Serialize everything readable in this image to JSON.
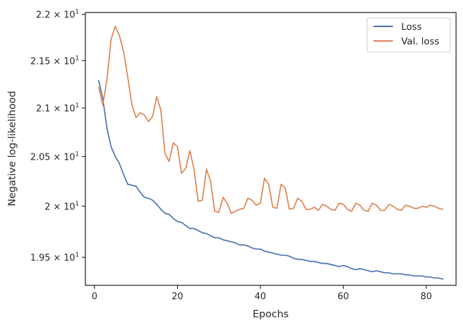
{
  "chart_data": {
    "type": "line",
    "xlabel": "Epochs",
    "ylabel": "Negative log-likelihood",
    "xlim": [
      -2.2,
      87.2
    ],
    "ylim": [
      19.23,
      22.02
    ],
    "yscale": "log",
    "grid": false,
    "legend_placement": "top-right",
    "x_ticks": [
      0,
      20,
      40,
      60,
      80
    ],
    "x_tick_labels": [
      "0",
      "20",
      "40",
      "60",
      "80"
    ],
    "y_ticks": [
      19.5,
      20.0,
      20.5,
      21.0,
      21.5,
      22.0
    ],
    "y_tick_labels": [
      {
        "mantissa": "1.95",
        "times": "×",
        "base": "10",
        "exp": "1"
      },
      {
        "mantissa": "2",
        "times": "×",
        "base": "10",
        "exp": "1"
      },
      {
        "mantissa": "2.05",
        "times": "×",
        "base": "10",
        "exp": "1"
      },
      {
        "mantissa": "2.1",
        "times": "×",
        "base": "10",
        "exp": "1"
      },
      {
        "mantissa": "2.15",
        "times": "×",
        "base": "10",
        "exp": "1"
      },
      {
        "mantissa": "2.2",
        "times": "×",
        "base": "10",
        "exp": "1"
      }
    ],
    "series": [
      {
        "name": "Loss",
        "color": "#4c72b0",
        "x": [
          1,
          2,
          3,
          4,
          5,
          6,
          7,
          8,
          9,
          10,
          11,
          12,
          13,
          14,
          15,
          16,
          17,
          18,
          19,
          20,
          21,
          22,
          23,
          24,
          25,
          26,
          27,
          28,
          29,
          30,
          31,
          32,
          33,
          34,
          35,
          36,
          37,
          38,
          39,
          40,
          41,
          42,
          43,
          44,
          45,
          46,
          47,
          48,
          49,
          50,
          51,
          52,
          53,
          54,
          55,
          56,
          57,
          58,
          59,
          60,
          61,
          62,
          63,
          64,
          65,
          66,
          67,
          68,
          69,
          70,
          71,
          72,
          73,
          74,
          75,
          76,
          77,
          78,
          79,
          80,
          81,
          82,
          83,
          84
        ],
        "y": [
          21.29,
          21.1,
          20.79,
          20.6,
          20.5,
          20.43,
          20.32,
          20.22,
          20.21,
          20.2,
          20.14,
          20.09,
          20.08,
          20.06,
          20.02,
          19.97,
          19.93,
          19.92,
          19.88,
          19.85,
          19.84,
          19.81,
          19.78,
          19.78,
          19.76,
          19.74,
          19.73,
          19.71,
          19.69,
          19.69,
          19.67,
          19.66,
          19.65,
          19.64,
          19.62,
          19.62,
          19.61,
          19.59,
          19.58,
          19.58,
          19.56,
          19.55,
          19.54,
          19.53,
          19.52,
          19.52,
          19.51,
          19.49,
          19.48,
          19.48,
          19.47,
          19.46,
          19.46,
          19.45,
          19.44,
          19.44,
          19.43,
          19.42,
          19.41,
          19.42,
          19.41,
          19.39,
          19.38,
          19.39,
          19.38,
          19.37,
          19.36,
          19.37,
          19.36,
          19.35,
          19.35,
          19.34,
          19.34,
          19.34,
          19.33,
          19.33,
          19.32,
          19.32,
          19.32,
          19.31,
          19.31,
          19.3,
          19.3,
          19.29
        ]
      },
      {
        "name": "Val. loss",
        "color": "#dd8452",
        "x": [
          1,
          2,
          3,
          4,
          5,
          6,
          7,
          8,
          9,
          10,
          11,
          12,
          13,
          14,
          15,
          16,
          17,
          18,
          19,
          20,
          21,
          22,
          23,
          24,
          25,
          26,
          27,
          28,
          29,
          30,
          31,
          32,
          33,
          34,
          35,
          36,
          37,
          38,
          39,
          40,
          41,
          42,
          43,
          44,
          45,
          46,
          47,
          48,
          49,
          50,
          51,
          52,
          53,
          54,
          55,
          56,
          57,
          58,
          59,
          60,
          61,
          62,
          63,
          64,
          65,
          66,
          67,
          68,
          69,
          70,
          71,
          72,
          73,
          74,
          75,
          76,
          77,
          78,
          79,
          80,
          81,
          82,
          83,
          84
        ],
        "y": [
          21.22,
          21.03,
          21.3,
          21.73,
          21.87,
          21.77,
          21.6,
          21.33,
          21.04,
          20.9,
          20.95,
          20.93,
          20.86,
          20.91,
          21.12,
          20.98,
          20.53,
          20.45,
          20.64,
          20.6,
          20.33,
          20.38,
          20.56,
          20.37,
          20.05,
          20.06,
          20.37,
          20.25,
          19.95,
          19.94,
          20.09,
          20.03,
          19.93,
          19.95,
          19.97,
          19.98,
          20.08,
          20.06,
          20.01,
          20.03,
          20.28,
          20.22,
          19.99,
          19.98,
          20.22,
          20.18,
          19.97,
          19.98,
          20.08,
          20.05,
          19.97,
          19.97,
          19.99,
          19.96,
          20.02,
          20.0,
          19.97,
          19.96,
          20.03,
          20.02,
          19.97,
          19.95,
          20.03,
          20.01,
          19.96,
          19.95,
          20.03,
          20.01,
          19.96,
          19.96,
          20.02,
          20.0,
          19.97,
          19.96,
          20.01,
          20.0,
          19.98,
          19.98,
          20.0,
          19.99,
          20.01,
          20.0,
          19.98,
          19.97
        ]
      }
    ]
  }
}
